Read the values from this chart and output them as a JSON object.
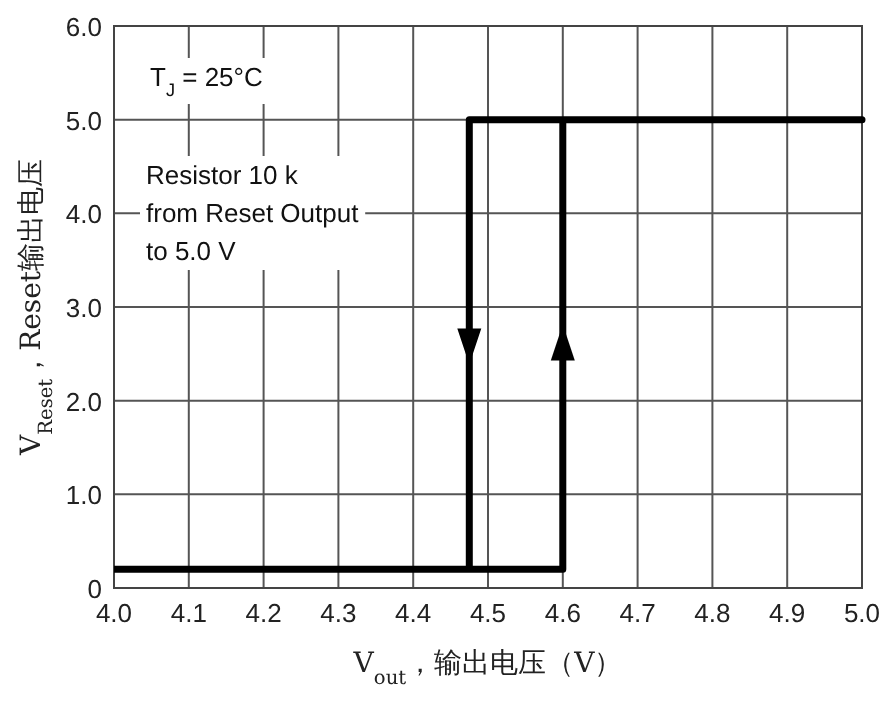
{
  "chart_data": {
    "type": "line",
    "xlabel": "V$_{out}$，输出电压（V）",
    "ylabel": "V$_{Reset}$，Reset输出电压",
    "annotations": [
      "T$_{J}$ = 25°C",
      "Resistor 10 k\nfrom Reset Output\nto 5.0 V"
    ],
    "series": [
      {
        "color": "#000000",
        "x": [
          4.0,
          4.6,
          4.6,
          5.0,
          4.475,
          4.475
        ],
        "values": [
          0.2,
          0.2,
          5.0,
          5.0,
          5.0,
          0.2
        ]
      }
    ],
    "xlim": [
      4.0,
      5.0
    ],
    "ylim": [
      0,
      6
    ],
    "xticks": [
      {
        "value": 4.0,
        "label": "4.0"
      },
      4.1,
      4.2,
      4.3,
      4.4,
      4.5,
      4.6,
      4.7,
      4.8,
      4.9,
      {
        "value": 5.0,
        "label": "5.0"
      }
    ],
    "yticks": [
      0,
      {
        "value": 1,
        "label": "1.0"
      },
      {
        "value": 2,
        "label": "2.0"
      },
      {
        "value": 3,
        "label": "3.0"
      },
      {
        "value": 4,
        "label": "4.0"
      },
      {
        "value": 5,
        "label": "5.0"
      },
      {
        "value": 6,
        "label": "6.0"
      }
    ],
    "grid": true
  }
}
